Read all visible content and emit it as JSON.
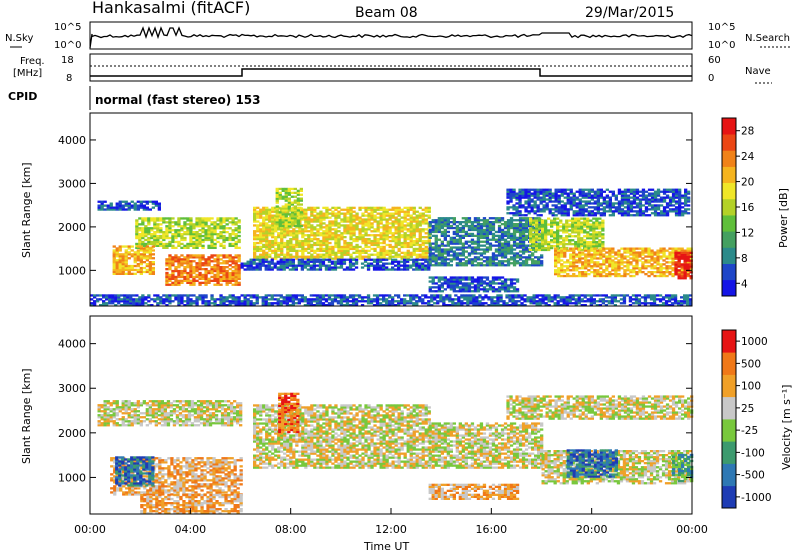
{
  "header": {
    "station": "Hankasalmi (fitACF)",
    "beam": "Beam 08",
    "date": "29/Mar/2015"
  },
  "housekeeping": {
    "nsky_label": "N.Sky",
    "nsearch_label": "N.Search",
    "noise_ticks": [
      "10^5",
      "10^0"
    ],
    "freq_label_1": "Freq.",
    "freq_label_2": "[MHz]",
    "freq_ticks": [
      "18",
      "8"
    ],
    "nave_label": "Nave",
    "nave_ticks": [
      "60",
      "0"
    ],
    "cpid_label": "CPID",
    "cpid_text": "normal (fast stereo) 153"
  },
  "chart_data": [
    {
      "type": "heatmap",
      "name": "power",
      "ylabel": "Slant Range [km]",
      "ylim": [
        180,
        4620
      ],
      "yticks": [
        1000,
        2000,
        3000,
        4000
      ],
      "xlim": [
        0,
        24
      ],
      "colorbar_label": "Power [dB]",
      "colorbar_ticks": [
        "28",
        "24",
        "20",
        "16",
        "12",
        "8",
        "4"
      ],
      "colors": [
        "#1515e6",
        "#1e46c8",
        "#2b8a8a",
        "#44a060",
        "#5fbf3a",
        "#b4d228",
        "#f0e628",
        "#f5b41e",
        "#f08218",
        "#eb4614",
        "#e61414"
      ],
      "features": [
        {
          "t0": 0.3,
          "t1": 2.8,
          "r0": 2380,
          "r1": 2600,
          "level": 1
        },
        {
          "t0": 1.8,
          "t1": 5.9,
          "r0": 1500,
          "r1": 2200,
          "level": 5
        },
        {
          "t0": 0.9,
          "t1": 2.5,
          "r0": 900,
          "r1": 1550,
          "level": 7
        },
        {
          "t0": 3.0,
          "t1": 5.9,
          "r0": 650,
          "r1": 1350,
          "level": 8
        },
        {
          "t0": 6.5,
          "t1": 13.5,
          "r0": 1250,
          "r1": 2450,
          "level": 6
        },
        {
          "t0": 7.4,
          "t1": 8.4,
          "r0": 2000,
          "r1": 2900,
          "level": 5
        },
        {
          "t0": 6.0,
          "t1": 13.5,
          "r0": 1000,
          "r1": 1250,
          "level": 1
        },
        {
          "t0": 13.5,
          "t1": 18.0,
          "r0": 1100,
          "r1": 2200,
          "level": 2
        },
        {
          "t0": 13.5,
          "t1": 17.0,
          "r0": 500,
          "r1": 850,
          "level": 1
        },
        {
          "t0": 16.6,
          "t1": 23.9,
          "r0": 2250,
          "r1": 2850,
          "level": 1
        },
        {
          "t0": 17.5,
          "t1": 20.5,
          "r0": 1450,
          "r1": 2200,
          "level": 5
        },
        {
          "t0": 18.5,
          "t1": 24.0,
          "r0": 850,
          "r1": 1500,
          "level": 7
        },
        {
          "t0": 23.3,
          "t1": 24.0,
          "r0": 800,
          "r1": 1400,
          "level": 10
        },
        {
          "t0": 0.0,
          "t1": 24.0,
          "r0": 180,
          "r1": 420,
          "level": 1
        }
      ]
    },
    {
      "type": "heatmap",
      "name": "velocity",
      "ylabel": "Slant Range [km]",
      "xlabel": "Time UT",
      "ylim": [
        180,
        4620
      ],
      "yticks": [
        1000,
        2000,
        3000,
        4000
      ],
      "xlim": [
        0,
        24
      ],
      "xticks": [
        "00:00",
        "04:00",
        "08:00",
        "12:00",
        "16:00",
        "20:00",
        "00:00"
      ],
      "colorbar_label": "Velocity [m s⁻¹]",
      "colorbar_ticks": [
        "1000",
        "500",
        "100",
        "25",
        "-25",
        "-100",
        "-500",
        "-1000"
      ],
      "colors": [
        "#1e3cb4",
        "#2e78b4",
        "#3c9a6e",
        "#78c83c",
        "#c8c8c8",
        "#f0a028",
        "#f07818",
        "#e61414"
      ],
      "features": [
        {
          "t0": 0.3,
          "t1": 6.0,
          "r0": 2150,
          "r1": 2700,
          "level": 4
        },
        {
          "t0": 0.8,
          "t1": 6.0,
          "r0": 600,
          "r1": 1450,
          "level": 5
        },
        {
          "t0": 1.0,
          "t1": 2.5,
          "r0": 800,
          "r1": 1450,
          "level": 1
        },
        {
          "t0": 6.5,
          "t1": 13.5,
          "r0": 1200,
          "r1": 2600,
          "level": 4
        },
        {
          "t0": 7.5,
          "t1": 8.3,
          "r0": 2000,
          "r1": 2900,
          "level": 6
        },
        {
          "t0": 13.5,
          "t1": 17.0,
          "r0": 500,
          "r1": 850,
          "level": 5
        },
        {
          "t0": 13.5,
          "t1": 18.0,
          "r0": 1200,
          "r1": 2200,
          "level": 4
        },
        {
          "t0": 16.6,
          "t1": 24.0,
          "r0": 2300,
          "r1": 2800,
          "level": 4
        },
        {
          "t0": 18.0,
          "t1": 24.0,
          "r0": 850,
          "r1": 1600,
          "level": 4
        },
        {
          "t0": 19.0,
          "t1": 21.0,
          "r0": 1000,
          "r1": 1600,
          "level": 1
        },
        {
          "t0": 23.2,
          "t1": 24.0,
          "r0": 900,
          "r1": 1500,
          "level": 2
        },
        {
          "t0": 2.0,
          "t1": 6.0,
          "r0": 180,
          "r1": 600,
          "level": 5
        }
      ]
    }
  ]
}
